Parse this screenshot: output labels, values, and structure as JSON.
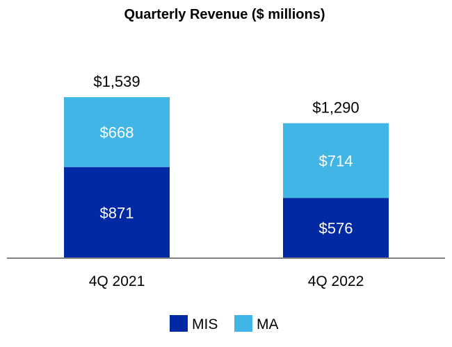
{
  "chart_data": {
    "type": "bar",
    "stacked": true,
    "title": "Quarterly Revenue ($ millions)",
    "categories": [
      "4Q 2021",
      "4Q 2022"
    ],
    "series": [
      {
        "name": "MIS",
        "values": [
          871,
          576
        ],
        "labels": [
          "$871",
          "$576"
        ],
        "color": "#0029a3"
      },
      {
        "name": "MA",
        "values": [
          668,
          714
        ],
        "labels": [
          "$668",
          "$714"
        ],
        "color": "#41b6e6"
      }
    ],
    "totals": [
      1539,
      1290
    ],
    "total_labels": [
      "$1,539",
      "$1,290"
    ],
    "grid": false,
    "legend": "bottom",
    "axis_color": "#7f7f7f"
  }
}
